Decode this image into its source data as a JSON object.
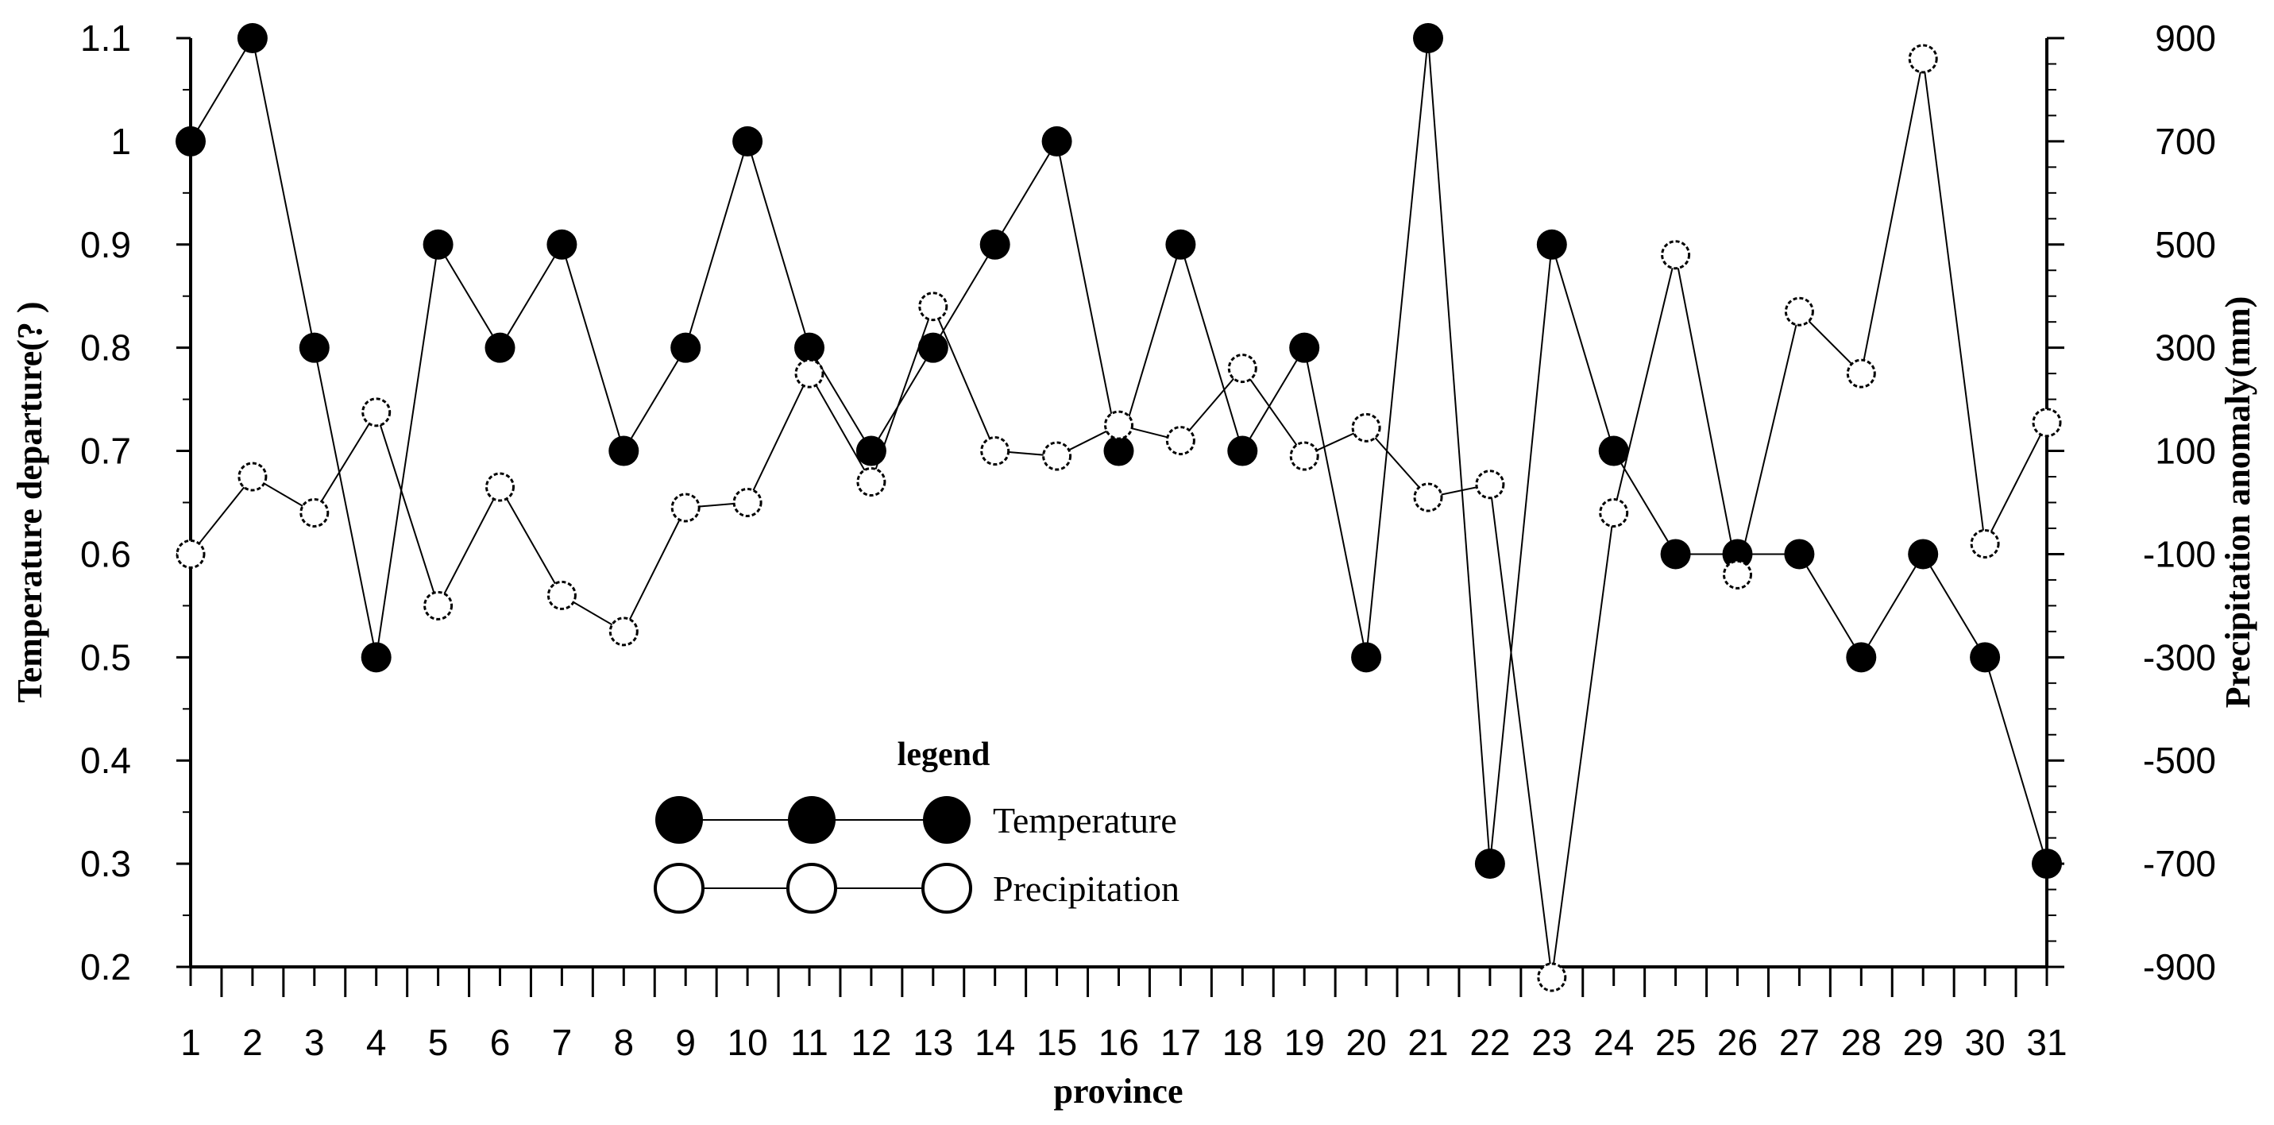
{
  "chart_data": {
    "type": "line",
    "xlabel": "province",
    "ylabel_left": "Temperature departure(?  )",
    "ylabel_right": "Precipitation anomaly(mm)",
    "x": [
      1,
      2,
      3,
      4,
      5,
      6,
      7,
      8,
      9,
      10,
      11,
      12,
      13,
      14,
      15,
      16,
      17,
      18,
      19,
      20,
      21,
      22,
      23,
      24,
      25,
      26,
      27,
      28,
      29,
      30,
      31
    ],
    "x_tick_labels": [
      "1",
      "2",
      "3",
      "4",
      "5",
      "6",
      "7",
      "8",
      "9",
      "10",
      "11",
      "12",
      "13",
      "14",
      "15",
      "16",
      "17",
      "18",
      "19",
      "20",
      "21",
      "22",
      "23",
      "24",
      "25",
      "26",
      "27",
      "28",
      "29",
      "30",
      "31"
    ],
    "ylim_left": [
      0.2,
      1.1
    ],
    "yticks_left": [
      "0.2",
      "0.3",
      "0.4",
      "0.5",
      "0.6",
      "0.7",
      "0.8",
      "0.9",
      "1",
      "1.1"
    ],
    "ylim_right": [
      -900,
      900
    ],
    "yticks_right": [
      "-900",
      "-700",
      "-500",
      "-300",
      "-100",
      "100",
      "300",
      "500",
      "700",
      "900"
    ],
    "grid": false,
    "legend": {
      "title": "legend",
      "position": "bottom-center"
    },
    "series": [
      {
        "name": "Temperature",
        "axis": "left",
        "marker": "filled-circle",
        "color": "#000000",
        "values": [
          1.0,
          1.1,
          0.8,
          0.5,
          0.9,
          0.8,
          0.9,
          0.7,
          0.8,
          1.0,
          0.8,
          0.7,
          0.8,
          0.9,
          1.0,
          0.7,
          0.9,
          0.7,
          0.8,
          0.5,
          1.1,
          0.3,
          0.9,
          0.7,
          0.6,
          0.6,
          0.6,
          0.5,
          0.6,
          0.5,
          0.3
        ]
      },
      {
        "name": "Precipitation",
        "axis": "right",
        "marker": "open-circle",
        "color": "#000000",
        "values": [
          -100,
          50,
          -20,
          175,
          -200,
          30,
          -180,
          -250,
          -10,
          0,
          250,
          40,
          380,
          100,
          90,
          150,
          120,
          260,
          90,
          145,
          10,
          35,
          -920,
          -20,
          480,
          -140,
          370,
          250,
          860,
          -80,
          155
        ]
      }
    ]
  }
}
